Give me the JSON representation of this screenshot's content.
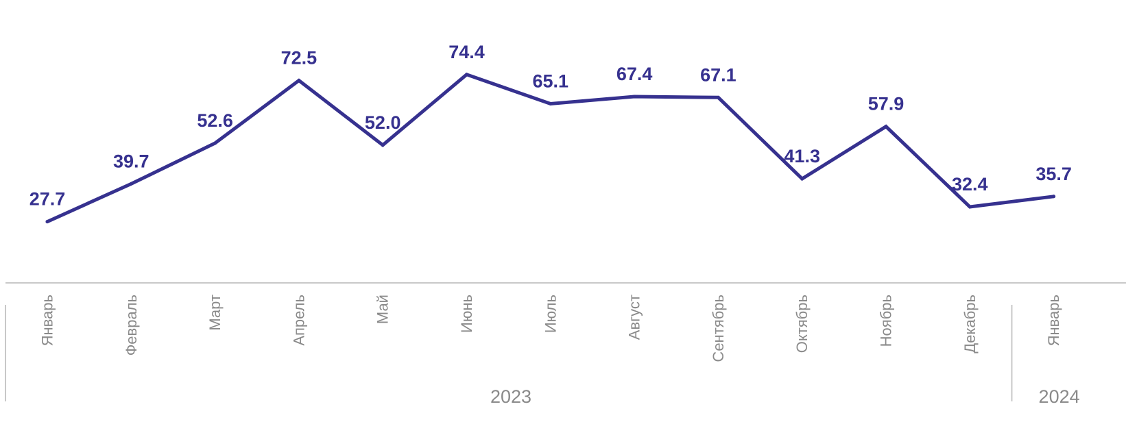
{
  "chart_data": {
    "type": "line",
    "title": "",
    "xlabel": "",
    "ylabel": "",
    "ylim": [
      0,
      80
    ],
    "grid": false,
    "legend": "none",
    "categories": [
      "Январь",
      "Февраль",
      "Март",
      "Апрель",
      "Май",
      "Июнь",
      "Июль",
      "Август",
      "Сентябрь",
      "Октябрь",
      "Ноябрь",
      "Декабрь",
      "Январь"
    ],
    "groups": [
      {
        "label": "2023",
        "start": 0,
        "end": 11
      },
      {
        "label": "2024",
        "start": 12,
        "end": 12
      }
    ],
    "series": [
      {
        "values": [
          27.7,
          39.7,
          52.6,
          72.5,
          52.0,
          74.4,
          65.1,
          67.4,
          67.1,
          41.3,
          57.9,
          32.4,
          35.7
        ],
        "labels": [
          "27.7",
          "39.7",
          "52.6",
          "72.5",
          "52.0",
          "74.4",
          "65.1",
          "67.4",
          "67.1",
          "41.3",
          "57.9",
          "32.4",
          "35.7"
        ]
      }
    ]
  },
  "colors": {
    "line": "#36318f",
    "data_label": "#36318f",
    "axis": "#c8c8c8",
    "tick_label": "#8a8a8a"
  }
}
